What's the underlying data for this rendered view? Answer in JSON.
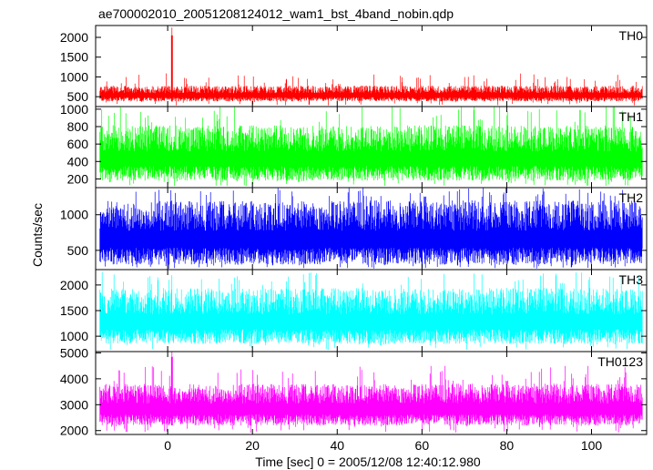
{
  "title": "ae700002010_20051208124012_wam1_bst_4band_nobin.qdp",
  "xlabel": "Time [sec] 0 = 2005/12/08 12:40:12.980",
  "ylabel": "Counts/sec",
  "chart_data": {
    "type": "line",
    "x_range": [
      -17,
      113
    ],
    "x_ticks": [
      0,
      20,
      40,
      60,
      80,
      100
    ],
    "x_tick_labels": [
      "0",
      "20",
      "40",
      "60",
      "80",
      "100"
    ],
    "data_x_range": [
      -16,
      112
    ],
    "panels": [
      {
        "name": "TH0",
        "color": "#ff0000",
        "ylim": [
          250,
          2300
        ],
        "yticks": [
          500,
          1000,
          1500,
          2000
        ],
        "ytick_labels": [
          "500",
          "1000",
          "1500",
          "2000"
        ],
        "baseline_low": 380,
        "baseline_high": 800,
        "spike_max": 1100,
        "bursts": [
          {
            "time": 1.0,
            "peak": 2250
          }
        ]
      },
      {
        "name": "TH1",
        "color": "#00ff00",
        "ylim": [
          100,
          1030
        ],
        "yticks": [
          200,
          400,
          600,
          800,
          1000
        ],
        "ytick_labels": [
          "200",
          "400",
          "600",
          "800",
          "1000"
        ],
        "baseline_low": 180,
        "baseline_high": 850,
        "spike_max": 1050,
        "bursts": []
      },
      {
        "name": "TH2",
        "color": "#0000ff",
        "ylim": [
          230,
          1380
        ],
        "yticks": [
          500,
          1000
        ],
        "ytick_labels": [
          "500",
          "1000"
        ],
        "baseline_low": 300,
        "baseline_high": 1250,
        "spike_max": 1380,
        "bursts": []
      },
      {
        "name": "TH3",
        "color": "#00ffff",
        "ylim": [
          700,
          2300
        ],
        "yticks": [
          1000,
          1500,
          2000
        ],
        "ytick_labels": [
          "1000",
          "1500",
          "2000"
        ],
        "baseline_low": 850,
        "baseline_high": 2000,
        "spike_max": 2250,
        "bursts": []
      },
      {
        "name": "TH0123",
        "color": "#ff00ff",
        "ylim": [
          1850,
          5050
        ],
        "yticks": [
          2000,
          3000,
          4000,
          5000
        ],
        "ytick_labels": [
          "2000",
          "3000",
          "4000",
          "5000"
        ],
        "baseline_low": 2200,
        "baseline_high": 3900,
        "spike_max": 4500,
        "bursts": [
          {
            "time": 1.0,
            "peak": 5050
          }
        ]
      }
    ]
  }
}
